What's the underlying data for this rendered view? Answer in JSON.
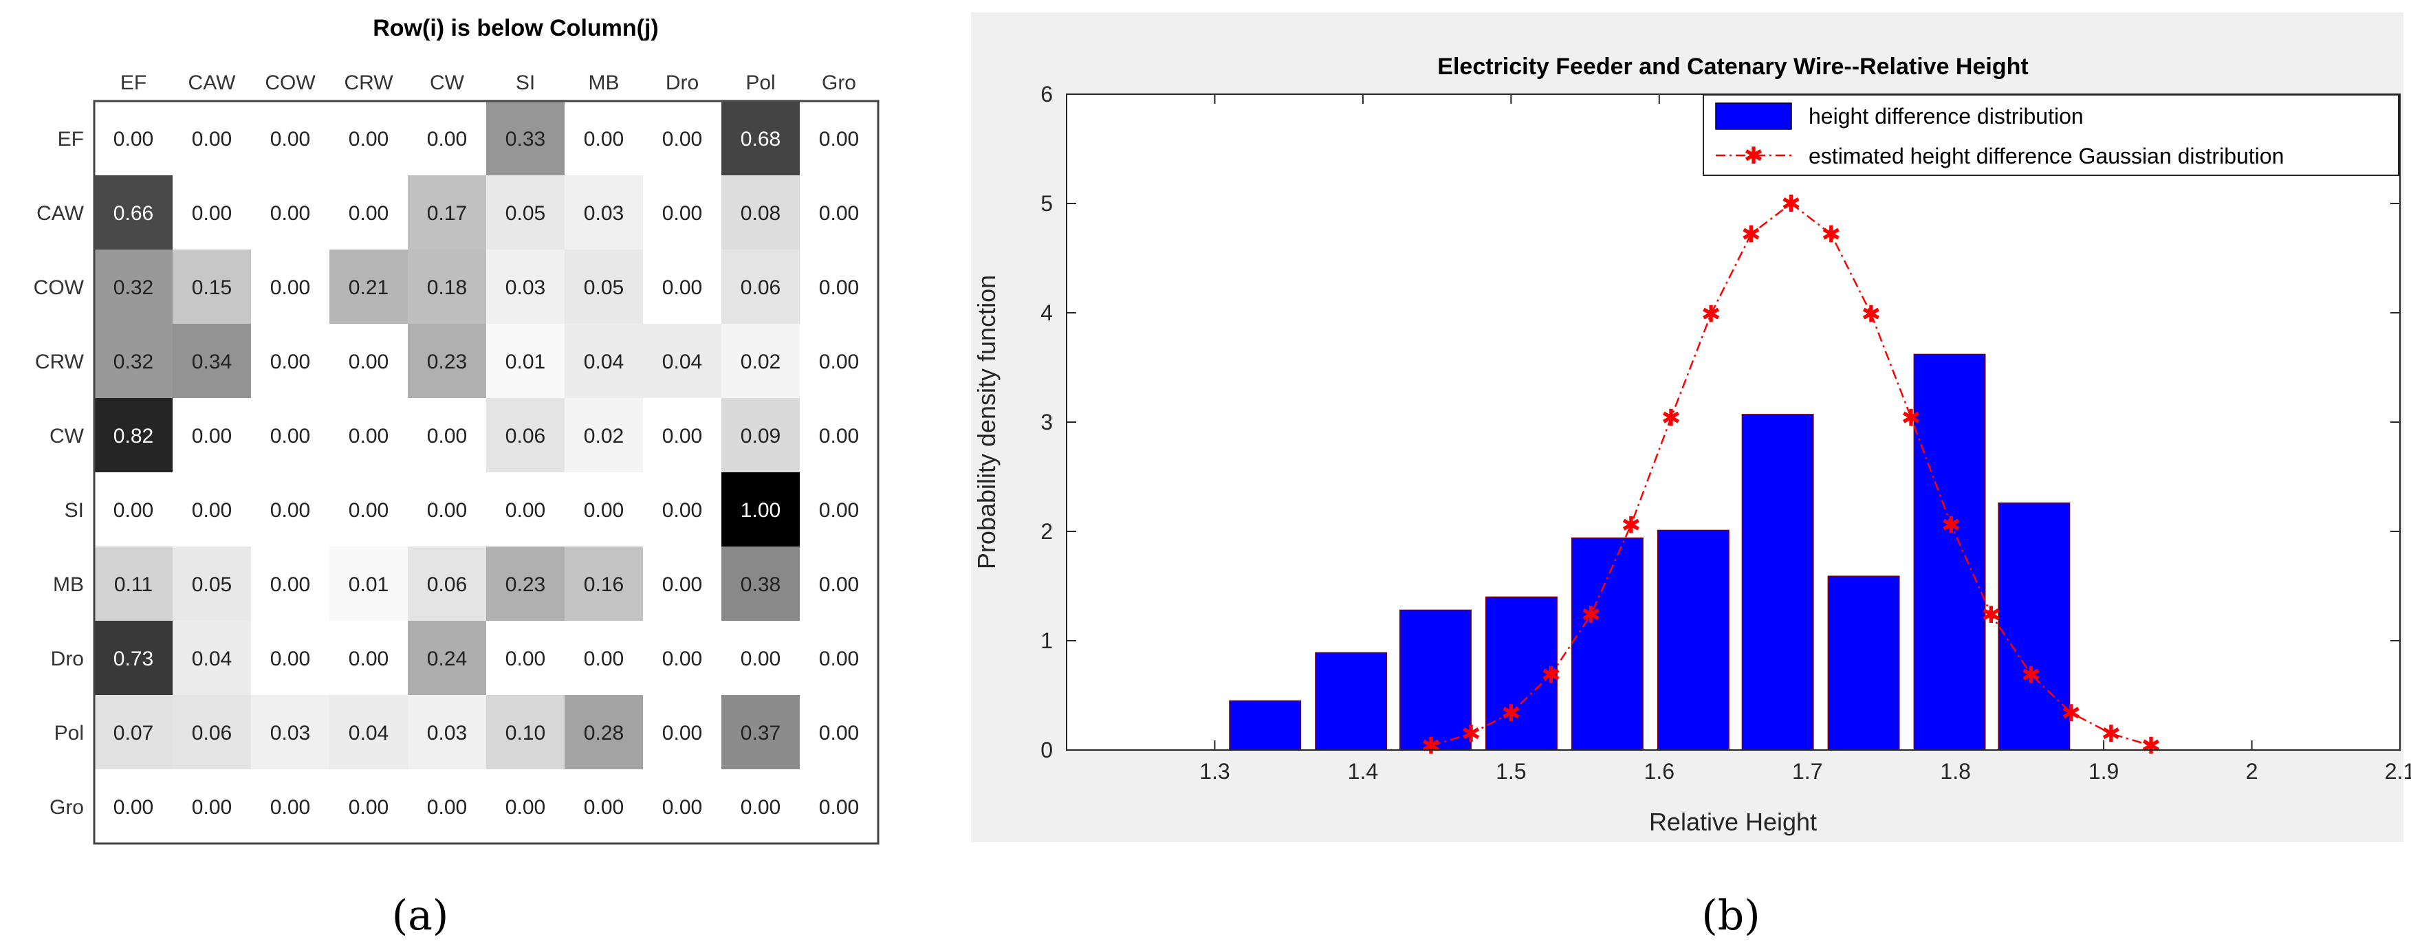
{
  "chart_data": [
    {
      "type": "heatmap",
      "panel_caption": "(a)",
      "title": "Row(i) is below Column(j)",
      "row_labels": [
        "EF",
        "CAW",
        "COW",
        "CRW",
        "CW",
        "SI",
        "MB",
        "Dro",
        "Pol",
        "Gro"
      ],
      "col_labels": [
        "EF",
        "CAW",
        "COW",
        "CRW",
        "CW",
        "SI",
        "MB",
        "Dro",
        "Pol",
        "Gro"
      ],
      "values": [
        [
          0.0,
          0.0,
          0.0,
          0.0,
          0.0,
          0.33,
          0.0,
          0.0,
          0.68,
          0.0
        ],
        [
          0.66,
          0.0,
          0.0,
          0.0,
          0.17,
          0.05,
          0.03,
          0.0,
          0.08,
          0.0
        ],
        [
          0.32,
          0.15,
          0.0,
          0.21,
          0.18,
          0.03,
          0.05,
          0.0,
          0.06,
          0.0
        ],
        [
          0.32,
          0.34,
          0.0,
          0.0,
          0.23,
          0.01,
          0.04,
          0.04,
          0.02,
          0.0
        ],
        [
          0.82,
          0.0,
          0.0,
          0.0,
          0.0,
          0.06,
          0.02,
          0.0,
          0.09,
          0.0
        ],
        [
          0.0,
          0.0,
          0.0,
          0.0,
          0.0,
          0.0,
          0.0,
          0.0,
          1.0,
          0.0
        ],
        [
          0.11,
          0.05,
          0.0,
          0.01,
          0.06,
          0.23,
          0.16,
          0.0,
          0.38,
          0.0
        ],
        [
          0.73,
          0.04,
          0.0,
          0.0,
          0.24,
          0.0,
          0.0,
          0.0,
          0.0,
          0.0
        ],
        [
          0.07,
          0.06,
          0.03,
          0.04,
          0.03,
          0.1,
          0.28,
          0.0,
          0.37,
          0.0
        ],
        [
          0.0,
          0.0,
          0.0,
          0.0,
          0.0,
          0.0,
          0.0,
          0.0,
          0.0,
          0.0
        ]
      ],
      "colormap": "white-to-black"
    },
    {
      "type": "bar",
      "panel_caption": "(b)",
      "title": "Electricity Feeder and Catenary Wire--Relative Height",
      "xlabel": "Relative Height",
      "ylabel": "Probability density function",
      "xlim": [
        1.2,
        2.1
      ],
      "ylim": [
        0,
        6
      ],
      "xticks": [
        1.3,
        1.4,
        1.5,
        1.6,
        1.7,
        1.8,
        1.9,
        2,
        2.1
      ],
      "yticks": [
        0,
        1,
        2,
        3,
        4,
        5,
        6
      ],
      "bar_width": 0.048,
      "bar_color": "#0000ff",
      "series": [
        {
          "name": "height difference distribution",
          "type": "bar",
          "x": [
            1.334,
            1.392,
            1.449,
            1.507,
            1.565,
            1.623,
            1.68,
            1.738,
            1.796,
            1.853
          ],
          "values": [
            0.45,
            0.89,
            1.28,
            1.4,
            1.94,
            2.01,
            3.07,
            1.59,
            3.62,
            2.26
          ]
        },
        {
          "name": "estimated height difference Gaussian distribution",
          "type": "line",
          "style": "dash-dot",
          "marker": "*",
          "color": "#ff0000",
          "x": [
            1.446,
            1.473,
            1.5,
            1.527,
            1.554,
            1.581,
            1.608,
            1.635,
            1.662,
            1.689,
            1.716,
            1.743,
            1.77,
            1.797,
            1.824,
            1.851,
            1.878,
            1.905,
            1.932
          ],
          "values": [
            0.04,
            0.15,
            0.34,
            0.69,
            1.24,
            2.06,
            3.04,
            3.99,
            4.72,
            5.0,
            4.72,
            3.99,
            3.04,
            2.06,
            1.24,
            0.69,
            0.34,
            0.15,
            0.04
          ]
        }
      ],
      "legend_position": "top-right"
    }
  ]
}
